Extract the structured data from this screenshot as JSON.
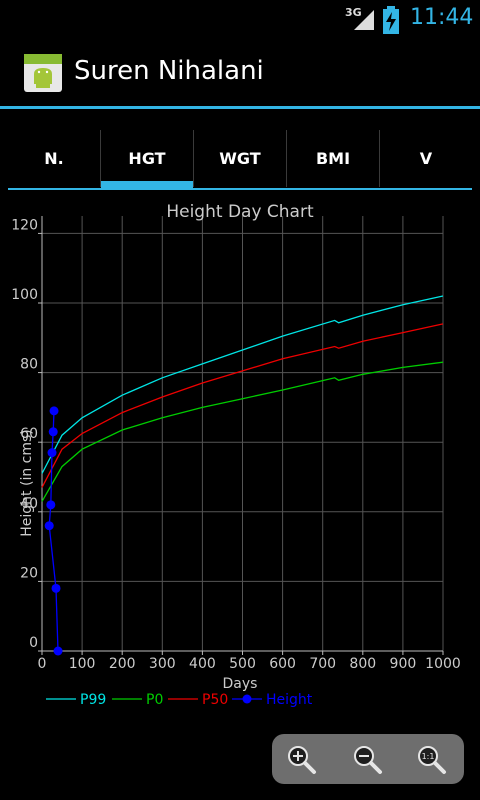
{
  "status_bar": {
    "network": "3G",
    "time": "11:44"
  },
  "app": {
    "title": "Suren Nihalani"
  },
  "tabs": [
    {
      "label": "N.",
      "selected": false
    },
    {
      "label": "HGT",
      "selected": true
    },
    {
      "label": "WGT",
      "selected": false
    },
    {
      "label": "BMI",
      "selected": false
    },
    {
      "label": "V",
      "selected": false
    }
  ],
  "colors": {
    "accent": "#33b5e5"
  },
  "zoom_controls": {
    "zoom_in_icon": "zoom-in-icon",
    "zoom_out_icon": "zoom-out-icon",
    "zoom_reset_icon": "zoom-reset-icon"
  },
  "chart_data": {
    "type": "line",
    "title": "Height Day Chart",
    "xlabel": "Days",
    "ylabel": "Height (in cms)",
    "xlim": [
      0,
      1000
    ],
    "ylim": [
      0,
      125
    ],
    "x_ticks": [
      0,
      100,
      200,
      300,
      400,
      500,
      600,
      700,
      800,
      900,
      1000
    ],
    "y_ticks": [
      0,
      20,
      40,
      60,
      80,
      100,
      120
    ],
    "grid": true,
    "legend_position": "bottom",
    "series": [
      {
        "name": "P99",
        "color": "#00e5e5",
        "x": [
          0,
          50,
          100,
          200,
          300,
          400,
          500,
          600,
          730,
          740,
          800,
          900,
          1000
        ],
        "y": [
          51,
          62,
          67,
          73.5,
          78.5,
          82.5,
          86.5,
          90.5,
          95,
          94.3,
          96.5,
          99.5,
          102
        ]
      },
      {
        "name": "P0",
        "color": "#00cc00",
        "x": [
          0,
          50,
          100,
          200,
          300,
          400,
          500,
          600,
          730,
          740,
          800,
          900,
          1000
        ],
        "y": [
          43,
          53,
          58,
          63.5,
          67,
          70,
          72.5,
          75,
          78.5,
          77.8,
          79.5,
          81.5,
          83
        ]
      },
      {
        "name": "P50",
        "color": "#ee0000",
        "x": [
          0,
          50,
          100,
          200,
          300,
          400,
          500,
          600,
          730,
          740,
          800,
          900,
          1000
        ],
        "y": [
          47,
          58,
          62.5,
          68.5,
          73,
          77,
          80.5,
          84,
          87.5,
          87,
          89,
          91.5,
          94
        ]
      },
      {
        "name": "Height",
        "color": "#0000ff",
        "markers": true,
        "x": [
          30,
          28,
          25,
          22,
          18,
          35,
          40
        ],
        "y": [
          69,
          63,
          57,
          42,
          36,
          18,
          0
        ]
      }
    ]
  }
}
